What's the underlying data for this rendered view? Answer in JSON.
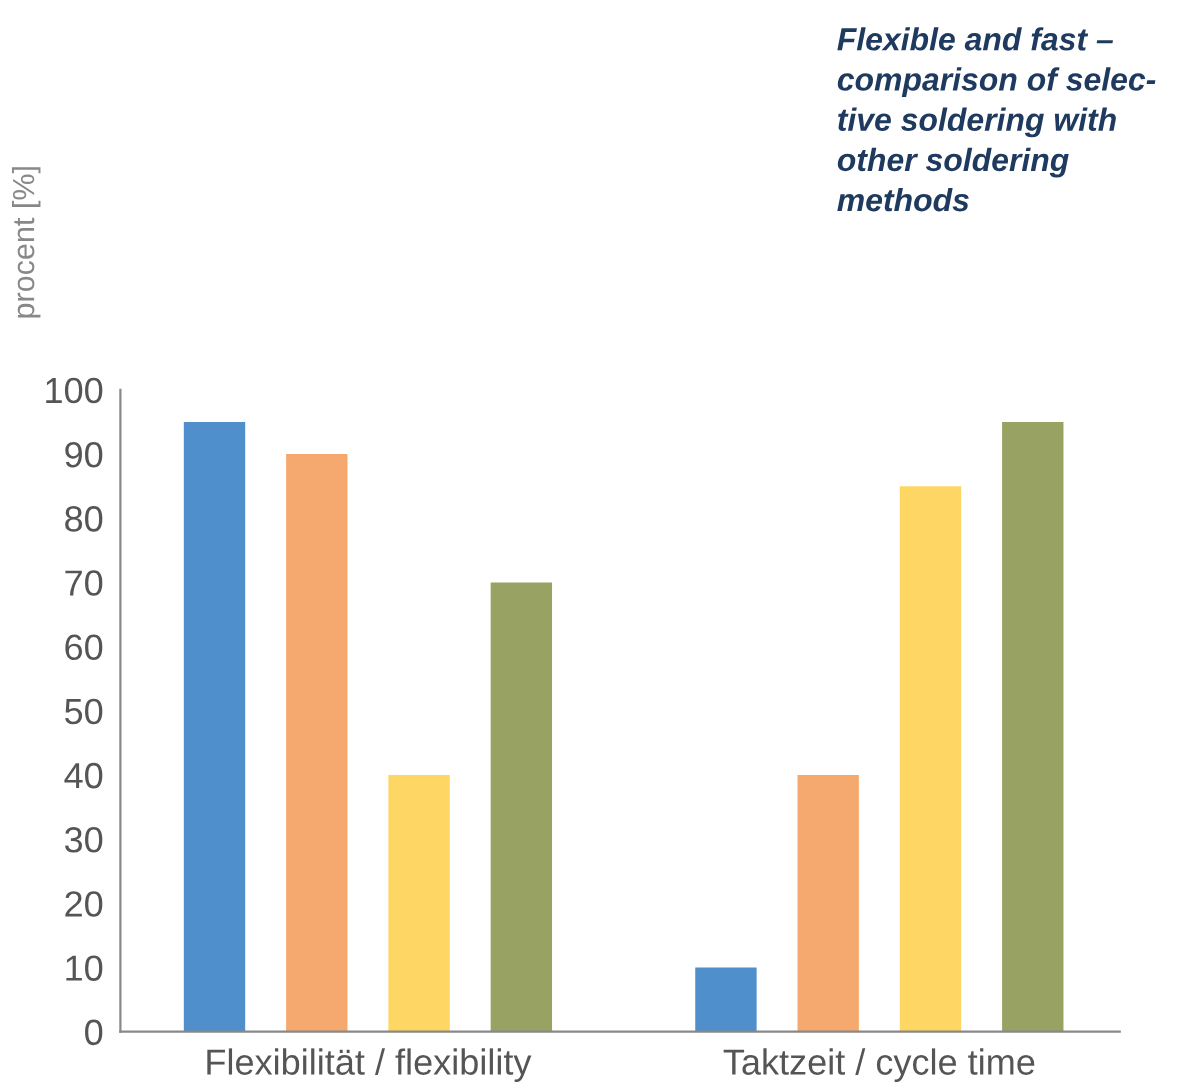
{
  "chart_data": {
    "type": "bar",
    "title": "Flexible and fast –\ncomparison of selec-\ntive soldering with\nother soldering\nmethods",
    "ylabel": "procent [%]",
    "categories": [
      "Flexibilität / flexibility",
      "Taktzeit / cycle time"
    ],
    "series": [
      {
        "color": "#4f8fcb",
        "values": [
          95,
          10
        ]
      },
      {
        "color": "#f5a96e",
        "values": [
          90,
          40
        ]
      },
      {
        "color": "#fdd663",
        "values": [
          40,
          85
        ]
      },
      {
        "color": "#97a263",
        "values": [
          70,
          95
        ]
      }
    ],
    "ylim": [
      0,
      100
    ],
    "yticks": [
      0,
      10,
      20,
      30,
      40,
      50,
      60,
      70,
      80,
      90,
      100
    ],
    "grid": false,
    "legend": false
  }
}
